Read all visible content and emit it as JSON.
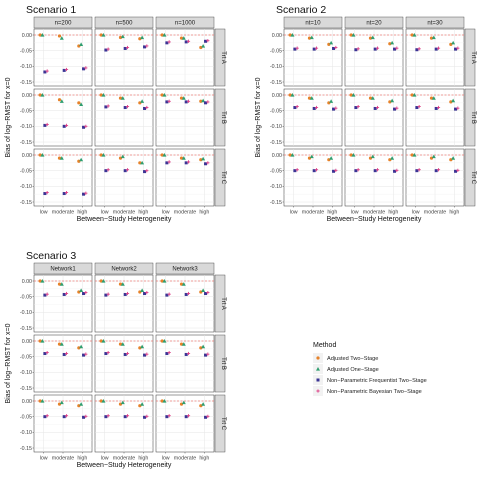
{
  "chart_data": {
    "type": "scatter",
    "title": "",
    "ylabel": "Bias of log−RMST for x=0",
    "xlabel": "Between−Study Heterogeneity",
    "x_categories": [
      "low",
      "moderate",
      "high"
    ],
    "ylim": [
      -0.15,
      0.0
    ],
    "yticks": [
      "0.00",
      "-0.05",
      "-0.10",
      "-0.15"
    ],
    "ytick_values": [
      0.0,
      -0.05,
      -0.1,
      -0.15
    ],
    "reference_line": 0,
    "grid": true,
    "legend": {
      "title": "Method",
      "position": "right",
      "entries": [
        {
          "label": "Adjusted Two−Stage",
          "color": "#e6822a",
          "shape": "circle"
        },
        {
          "label": "Adjusted One−Stage",
          "color": "#2f9e6f",
          "shape": "triangle"
        },
        {
          "label": "Non−Parametric Frequentist Two−Stage",
          "color": "#3b3494",
          "shape": "square"
        },
        {
          "label": "Non−Parametric Bayesian Two−Stage",
          "color": "#dd3f86",
          "shape": "plus"
        }
      ]
    },
    "scenarios": [
      {
        "title": "Scenario 1",
        "columns": [
          "n=200",
          "n=500",
          "n=1000"
        ],
        "rows": [
          "Trt A",
          "Trt B",
          "Trt C"
        ],
        "panels": [
          [
            {
              "two": [
                0.0,
                -0.003,
                -0.035
              ],
              "one": [
                0.0,
                -0.01,
                -0.03
              ],
              "freq": [
                -0.118,
                -0.113,
                -0.108
              ],
              "bayes": [
                -0.115,
                -0.11,
                -0.105
              ]
            },
            {
              "two": [
                0.0,
                -0.008,
                -0.012
              ],
              "one": [
                0.0,
                -0.005,
                -0.008
              ],
              "freq": [
                -0.048,
                -0.043,
                -0.038
              ],
              "bayes": [
                -0.045,
                -0.04,
                -0.035
              ]
            },
            {
              "two": [
                0.0,
                -0.01,
                -0.04
              ],
              "one": [
                0.0,
                -0.01,
                -0.035
              ],
              "freq": [
                -0.025,
                -0.022,
                -0.02
              ],
              "bayes": [
                -0.022,
                -0.02,
                -0.018
              ]
            }
          ],
          [
            {
              "two": [
                0.0,
                -0.015,
                -0.025
              ],
              "one": [
                0.0,
                -0.02,
                -0.03
              ],
              "freq": [
                -0.097,
                -0.1,
                -0.103
              ],
              "bayes": [
                -0.094,
                -0.097,
                -0.1
              ]
            },
            {
              "two": [
                0.0,
                -0.01,
                -0.025
              ],
              "one": [
                0.0,
                -0.01,
                -0.02
              ],
              "freq": [
                -0.038,
                -0.04,
                -0.043
              ],
              "bayes": [
                -0.035,
                -0.037,
                -0.04
              ]
            },
            {
              "two": [
                0.0,
                -0.01,
                -0.02
              ],
              "one": [
                0.0,
                -0.01,
                -0.018
              ],
              "freq": [
                -0.022,
                -0.022,
                -0.025
              ],
              "bayes": [
                -0.02,
                -0.02,
                -0.022
              ]
            }
          ],
          [
            {
              "two": [
                0.0,
                -0.01,
                -0.02
              ],
              "one": [
                0.0,
                -0.01,
                -0.015
              ],
              "freq": [
                -0.123,
                -0.123,
                -0.125
              ],
              "bayes": [
                -0.12,
                -0.12,
                -0.122
              ]
            },
            {
              "two": [
                0.0,
                -0.01,
                -0.025
              ],
              "one": [
                0.0,
                -0.005,
                -0.025
              ],
              "freq": [
                -0.05,
                -0.05,
                -0.053
              ],
              "bayes": [
                -0.047,
                -0.047,
                -0.05
              ]
            },
            {
              "two": [
                0.0,
                -0.01,
                -0.015
              ],
              "one": [
                0.0,
                -0.01,
                -0.012
              ],
              "freq": [
                -0.025,
                -0.025,
                -0.028
              ],
              "bayes": [
                -0.022,
                -0.022,
                -0.025
              ]
            }
          ]
        ]
      },
      {
        "title": "Scenario 2",
        "columns": [
          "nt=10",
          "nt=20",
          "nt=30"
        ],
        "rows": [
          "Trt A",
          "Trt B",
          "Trt C"
        ],
        "panels": [
          [
            {
              "two": [
                0.0,
                -0.01,
                -0.03
              ],
              "one": [
                0.0,
                -0.008,
                -0.025
              ],
              "freq": [
                -0.045,
                -0.045,
                -0.043
              ],
              "bayes": [
                -0.042,
                -0.042,
                -0.04
              ]
            },
            {
              "two": [
                0.0,
                -0.01,
                -0.028
              ],
              "one": [
                0.0,
                -0.008,
                -0.025
              ],
              "freq": [
                -0.047,
                -0.045,
                -0.045
              ],
              "bayes": [
                -0.044,
                -0.042,
                -0.042
              ]
            },
            {
              "two": [
                0.0,
                -0.01,
                -0.03
              ],
              "one": [
                0.0,
                -0.008,
                -0.025
              ],
              "freq": [
                -0.047,
                -0.045,
                -0.045
              ],
              "bayes": [
                -0.044,
                -0.042,
                -0.042
              ]
            }
          ],
          [
            {
              "two": [
                0.0,
                -0.01,
                -0.025
              ],
              "one": [
                0.0,
                -0.01,
                -0.02
              ],
              "freq": [
                -0.04,
                -0.043,
                -0.045
              ],
              "bayes": [
                -0.037,
                -0.04,
                -0.042
              ]
            },
            {
              "two": [
                0.0,
                -0.01,
                -0.022
              ],
              "one": [
                0.0,
                -0.01,
                -0.018
              ],
              "freq": [
                -0.04,
                -0.043,
                -0.045
              ],
              "bayes": [
                -0.037,
                -0.04,
                -0.042
              ]
            },
            {
              "two": [
                0.0,
                -0.01,
                -0.022
              ],
              "one": [
                0.0,
                -0.01,
                -0.018
              ],
              "freq": [
                -0.04,
                -0.043,
                -0.045
              ],
              "bayes": [
                -0.037,
                -0.04,
                -0.042
              ]
            }
          ],
          [
            {
              "two": [
                0.0,
                -0.01,
                -0.015
              ],
              "one": [
                0.0,
                -0.005,
                -0.01
              ],
              "freq": [
                -0.05,
                -0.05,
                -0.052
              ],
              "bayes": [
                -0.047,
                -0.047,
                -0.049
              ]
            },
            {
              "two": [
                0.0,
                -0.01,
                -0.015
              ],
              "one": [
                0.0,
                -0.005,
                -0.01
              ],
              "freq": [
                -0.05,
                -0.05,
                -0.052
              ],
              "bayes": [
                -0.047,
                -0.047,
                -0.049
              ]
            },
            {
              "two": [
                0.0,
                -0.01,
                -0.015
              ],
              "one": [
                0.0,
                -0.005,
                -0.01
              ],
              "freq": [
                -0.05,
                -0.05,
                -0.052
              ],
              "bayes": [
                -0.047,
                -0.047,
                -0.049
              ]
            }
          ]
        ]
      },
      {
        "title": "Scenario 3",
        "columns": [
          "Network1",
          "Network2",
          "Network3"
        ],
        "rows": [
          "Trt A",
          "Trt B",
          "Trt C"
        ],
        "panels": [
          [
            {
              "two": [
                0.0,
                -0.01,
                -0.035
              ],
              "one": [
                0.0,
                -0.01,
                -0.03
              ],
              "freq": [
                -0.045,
                -0.043,
                -0.04
              ],
              "bayes": [
                -0.042,
                -0.04,
                -0.037
              ]
            },
            {
              "two": [
                0.0,
                -0.01,
                -0.035
              ],
              "one": [
                0.0,
                -0.01,
                -0.03
              ],
              "freq": [
                -0.045,
                -0.043,
                -0.04
              ],
              "bayes": [
                -0.042,
                -0.04,
                -0.037
              ]
            },
            {
              "two": [
                0.0,
                -0.01,
                -0.035
              ],
              "one": [
                0.0,
                -0.01,
                -0.03
              ],
              "freq": [
                -0.045,
                -0.043,
                -0.04
              ],
              "bayes": [
                -0.042,
                -0.04,
                -0.037
              ]
            }
          ],
          [
            {
              "two": [
                0.0,
                -0.01,
                -0.022
              ],
              "one": [
                0.0,
                -0.01,
                -0.018
              ],
              "freq": [
                -0.04,
                -0.043,
                -0.045
              ],
              "bayes": [
                -0.037,
                -0.04,
                -0.042
              ]
            },
            {
              "two": [
                0.0,
                -0.01,
                -0.022
              ],
              "one": [
                0.0,
                -0.01,
                -0.018
              ],
              "freq": [
                -0.04,
                -0.043,
                -0.045
              ],
              "bayes": [
                -0.037,
                -0.04,
                -0.042
              ]
            },
            {
              "two": [
                0.0,
                -0.01,
                -0.022
              ],
              "one": [
                0.0,
                -0.01,
                -0.018
              ],
              "freq": [
                -0.04,
                -0.043,
                -0.045
              ],
              "bayes": [
                -0.037,
                -0.04,
                -0.042
              ]
            }
          ],
          [
            {
              "two": [
                0.0,
                -0.01,
                -0.015
              ],
              "one": [
                0.0,
                -0.005,
                -0.01
              ],
              "freq": [
                -0.05,
                -0.05,
                -0.052
              ],
              "bayes": [
                -0.047,
                -0.047,
                -0.049
              ]
            },
            {
              "two": [
                0.0,
                -0.01,
                -0.015
              ],
              "one": [
                0.0,
                -0.005,
                -0.01
              ],
              "freq": [
                -0.05,
                -0.05,
                -0.052
              ],
              "bayes": [
                -0.047,
                -0.047,
                -0.049
              ]
            },
            {
              "two": [
                0.0,
                -0.01,
                -0.015
              ],
              "one": [
                0.0,
                -0.005,
                -0.01
              ],
              "freq": [
                -0.05,
                -0.05,
                -0.052
              ],
              "bayes": [
                -0.047,
                -0.047,
                -0.049
              ]
            }
          ]
        ]
      }
    ]
  }
}
